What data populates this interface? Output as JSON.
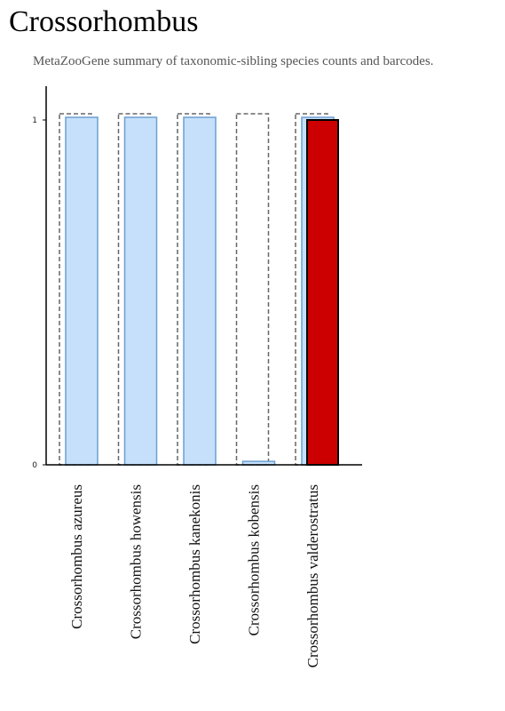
{
  "header": {
    "title": "Crossorhombus",
    "subtitle": "MetaZooGene summary of taxonomic-sibling species counts and barcodes."
  },
  "chart_data": {
    "type": "bar",
    "categories": [
      "Crossorhombus azureus",
      "Crossorhombus howensis",
      "Crossorhombus kanekonis",
      "Crossorhombus kobensis",
      "Crossorhombus valderostratus"
    ],
    "series": [
      {
        "values": [
          1,
          1,
          1,
          1,
          1
        ]
      },
      {
        "values": [
          1,
          1,
          1,
          0.01,
          1
        ]
      },
      {
        "values": [
          0,
          0,
          0,
          0,
          1
        ]
      }
    ],
    "yticks": [
      "0",
      "1"
    ],
    "ylim": [
      0,
      1
    ],
    "colors": {
      "outline_series": "#666666",
      "light_series_fill": "#c6e0fb",
      "light_series_stroke": "#6a9fd0",
      "highlight_series_fill": "#cc0000",
      "highlight_series_stroke": "#000000"
    }
  }
}
